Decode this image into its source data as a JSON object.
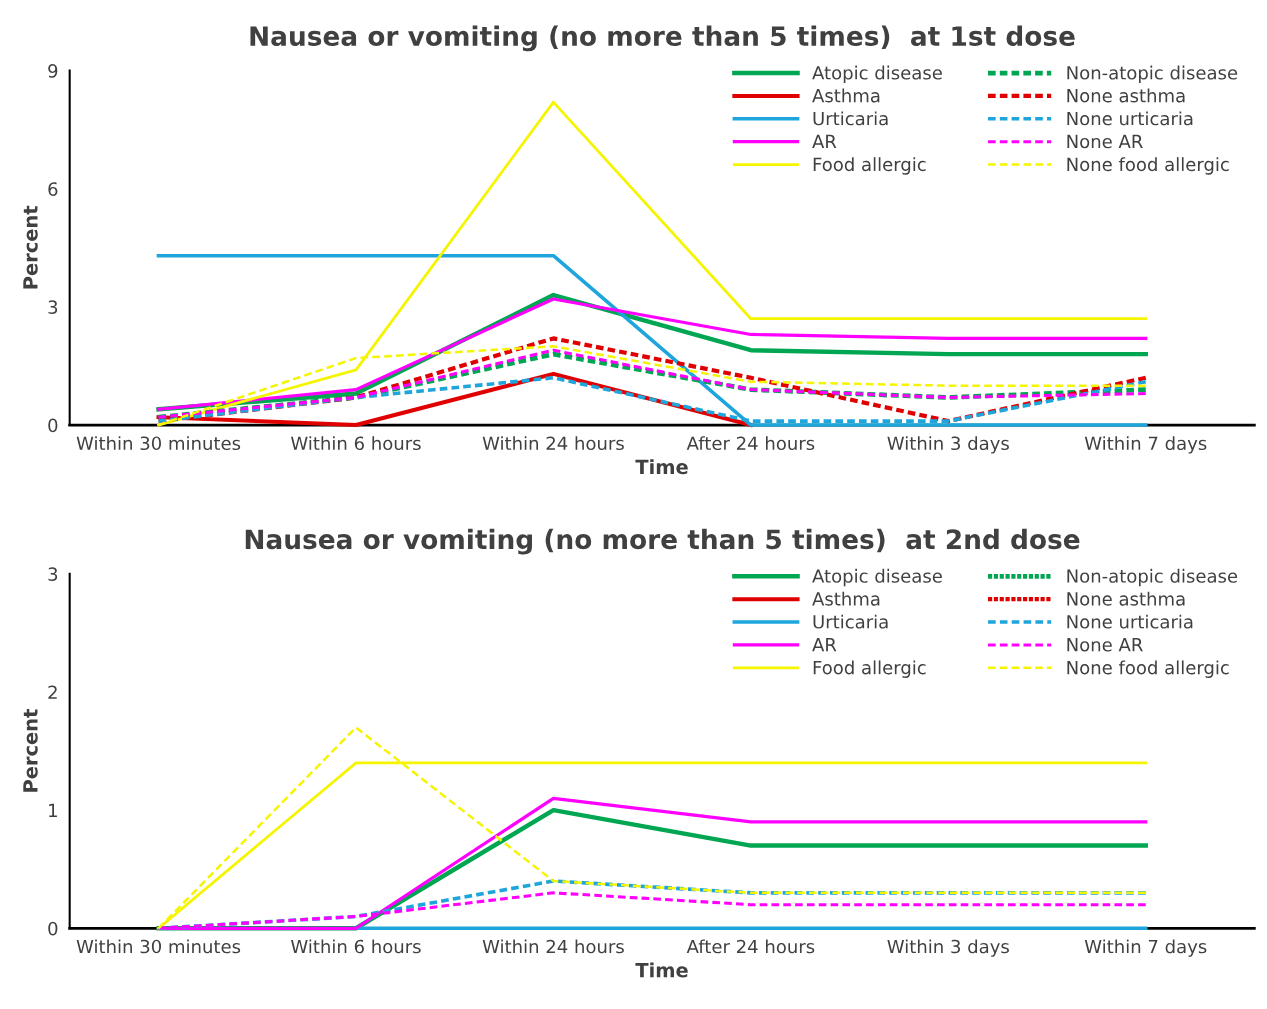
{
  "chart_data": [
    {
      "type": "line",
      "title": "Nausea or vomiting (no more than 5 times)  at 1st dose",
      "xlabel": "Time",
      "ylabel": "Percent",
      "categories": [
        "Within 30 minutes",
        "Within 6 hours",
        "Within 24 hours",
        "After 24 hours",
        "Within 3 days",
        "Within 7 days"
      ],
      "ylim": [
        0,
        9
      ],
      "yticks": [
        0,
        3,
        6,
        9
      ],
      "grid": false,
      "legend": "top right",
      "marker": "none",
      "series": [
        {
          "name": "Atopic disease",
          "color": "#00a651",
          "line_style": "solid",
          "values": [
            0.4,
            0.8,
            3.3,
            1.9,
            1.8,
            1.8
          ]
        },
        {
          "name": "Asthma",
          "color": "#e00000",
          "line_style": "solid",
          "values": [
            0.2,
            0,
            1.3,
            0,
            null,
            null
          ]
        },
        {
          "name": "Urticaria",
          "color": "#1ea6dc",
          "line_style": "solid",
          "values": [
            4.3,
            4.3,
            4.3,
            0,
            0,
            0
          ]
        },
        {
          "name": "AR",
          "color": "#ff00ff",
          "line_style": "solid",
          "values": [
            0.4,
            0.9,
            3.2,
            2.3,
            2.2,
            2.2
          ]
        },
        {
          "name": "Food allergic",
          "color": "#f5f500",
          "line_style": "solid",
          "values": [
            0,
            1.4,
            8.2,
            2.7,
            2.7,
            2.7
          ]
        },
        {
          "name": "Non-atopic disease",
          "color": "#00a651",
          "line_style": "dashed",
          "values": [
            0.2,
            0.7,
            1.8,
            0.9,
            0.7,
            0.9
          ]
        },
        {
          "name": "None asthma",
          "color": "#e00000",
          "line_style": "dashed",
          "values": [
            0.1,
            0.7,
            2.2,
            1.2,
            0.1,
            1.2
          ]
        },
        {
          "name": "None urticaria",
          "color": "#1ea6dc",
          "line_style": "dashed",
          "values": [
            0.1,
            0.7,
            1.2,
            0.1,
            0.1,
            1.1
          ]
        },
        {
          "name": "None AR",
          "color": "#ff00ff",
          "line_style": "dashed",
          "values": [
            0.2,
            0.7,
            1.9,
            0.9,
            0.7,
            0.8
          ]
        },
        {
          "name": "None food allergic",
          "color": "#f5f500",
          "line_style": "dashed",
          "values": [
            0,
            1.7,
            2.0,
            1.1,
            1.0,
            1.0
          ]
        }
      ]
    },
    {
      "type": "line",
      "title": "Nausea or vomiting (no more than 5 times)  at 2nd dose",
      "xlabel": "Time",
      "ylabel": "Percent",
      "categories": [
        "Within 30 minutes",
        "Within 6 hours",
        "Within 24 hours",
        "After 24 hours",
        "Within 3 days",
        "Within 7 days"
      ],
      "ylim": [
        0,
        3
      ],
      "yticks": [
        0,
        1,
        2,
        3
      ],
      "grid": false,
      "legend": "top right",
      "marker": "none",
      "series": [
        {
          "name": "Atopic disease",
          "color": "#00a651",
          "line_style": "solid",
          "values": [
            0,
            0,
            1.0,
            0.7,
            0.7,
            0.7
          ]
        },
        {
          "name": "Asthma",
          "color": "#e00000",
          "line_style": "solid",
          "values": [
            null,
            null,
            null,
            null,
            null,
            null
          ]
        },
        {
          "name": "Urticaria",
          "color": "#1ea6dc",
          "line_style": "solid",
          "values": [
            null,
            0,
            0,
            0,
            0,
            0
          ]
        },
        {
          "name": "AR",
          "color": "#ff00ff",
          "line_style": "solid",
          "values": [
            0,
            0,
            1.1,
            0.9,
            0.9,
            0.9
          ]
        },
        {
          "name": "Food allergic",
          "color": "#f5f500",
          "line_style": "solid",
          "values": [
            0,
            1.4,
            1.4,
            1.4,
            1.4,
            1.4
          ]
        },
        {
          "name": "Non-atopic disease",
          "color": "#00a651",
          "line_style": "dashed",
          "values": [
            null,
            null,
            null,
            null,
            null,
            null
          ]
        },
        {
          "name": "None asthma",
          "color": "#e00000",
          "line_style": "dashed",
          "values": [
            null,
            null,
            null,
            null,
            null,
            null
          ]
        },
        {
          "name": "None urticaria",
          "color": "#1ea6dc",
          "line_style": "dashed",
          "values": [
            0,
            0.1,
            0.4,
            0.3,
            0.3,
            0.3
          ]
        },
        {
          "name": "None AR",
          "color": "#ff00ff",
          "line_style": "dashed",
          "values": [
            0,
            0.1,
            0.3,
            0.2,
            0.2,
            0.2
          ]
        },
        {
          "name": "None food allergic",
          "color": "#f5f500",
          "line_style": "dashed",
          "values": [
            0,
            1.7,
            0.4,
            0.3,
            0.3,
            0.3
          ]
        }
      ]
    }
  ]
}
